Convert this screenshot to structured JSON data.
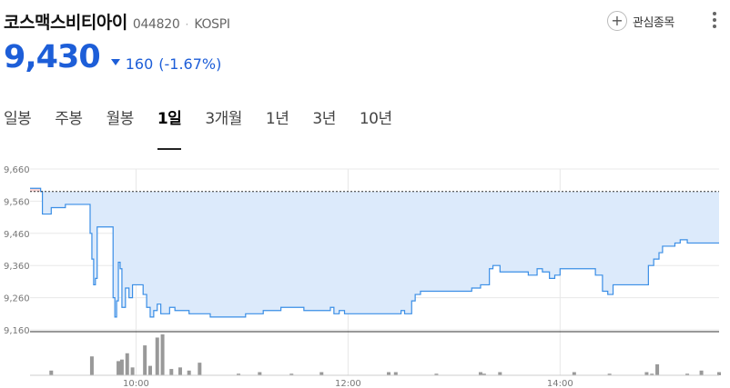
{
  "header": {
    "name": "코스맥스비티아이",
    "code": "044820",
    "separator": "·",
    "market": "KOSPI",
    "watch_icon": "plus-circle-icon",
    "watch_label": "관심종목",
    "more_icon": "kebab-menu-icon"
  },
  "quote": {
    "price": "9,430",
    "direction": "down",
    "change": "160",
    "change_pct": "(-1.67%)",
    "color": "#1d5ed8"
  },
  "tabs": [
    {
      "label": "일봉",
      "active": false
    },
    {
      "label": "주봉",
      "active": false
    },
    {
      "label": "월봉",
      "active": false
    },
    {
      "label": "1일",
      "active": true
    },
    {
      "label": "3개월",
      "active": false
    },
    {
      "label": "1년",
      "active": false
    },
    {
      "label": "3년",
      "active": false
    },
    {
      "label": "10년",
      "active": false
    }
  ],
  "chart_data": {
    "type": "area",
    "ylim": [
      9160,
      9660
    ],
    "y_ticks": [
      "9,660",
      "9,560",
      "9,460",
      "9,360",
      "9,260",
      "9,160"
    ],
    "y_tick_values": [
      9660,
      9560,
      9460,
      9360,
      9260,
      9160
    ],
    "x_ticks": [
      "10:00",
      "12:00",
      "14:00"
    ],
    "x_tick_minutes": [
      600,
      720,
      840
    ],
    "x_range_minutes": [
      540,
      930
    ],
    "prev_close": 9590,
    "colors": {
      "line": "#3a8ee6",
      "fill": "#dceafb",
      "above_fill": "#f8d4d4",
      "above_line": "#e05555",
      "volume": "#999999",
      "grid": "#e8e8e8"
    },
    "price_series": [
      [
        540,
        9600
      ],
      [
        545,
        9600
      ],
      [
        546,
        9590
      ],
      [
        547,
        9520
      ],
      [
        551,
        9520
      ],
      [
        552,
        9540
      ],
      [
        560,
        9550
      ],
      [
        573,
        9550
      ],
      [
        574,
        9460
      ],
      [
        575,
        9380
      ],
      [
        576,
        9300
      ],
      [
        577,
        9320
      ],
      [
        578,
        9480
      ],
      [
        586,
        9480
      ],
      [
        587,
        9260
      ],
      [
        588,
        9200
      ],
      [
        589,
        9250
      ],
      [
        590,
        9370
      ],
      [
        591,
        9350
      ],
      [
        592,
        9230
      ],
      [
        594,
        9290
      ],
      [
        596,
        9260
      ],
      [
        598,
        9300
      ],
      [
        602,
        9300
      ],
      [
        604,
        9270
      ],
      [
        606,
        9230
      ],
      [
        608,
        9200
      ],
      [
        610,
        9220
      ],
      [
        612,
        9240
      ],
      [
        614,
        9210
      ],
      [
        617,
        9210
      ],
      [
        619,
        9230
      ],
      [
        622,
        9220
      ],
      [
        629,
        9220
      ],
      [
        630,
        9210
      ],
      [
        640,
        9210
      ],
      [
        642,
        9200
      ],
      [
        660,
        9200
      ],
      [
        662,
        9210
      ],
      [
        672,
        9220
      ],
      [
        680,
        9220
      ],
      [
        682,
        9230
      ],
      [
        690,
        9230
      ],
      [
        695,
        9220
      ],
      [
        708,
        9220
      ],
      [
        710,
        9230
      ],
      [
        712,
        9210
      ],
      [
        715,
        9220
      ],
      [
        718,
        9210
      ],
      [
        735,
        9210
      ],
      [
        740,
        9210
      ],
      [
        745,
        9210
      ],
      [
        750,
        9220
      ],
      [
        752,
        9210
      ],
      [
        756,
        9250
      ],
      [
        758,
        9270
      ],
      [
        761,
        9280
      ],
      [
        780,
        9280
      ],
      [
        790,
        9290
      ],
      [
        795,
        9300
      ],
      [
        800,
        9350
      ],
      [
        802,
        9360
      ],
      [
        806,
        9340
      ],
      [
        820,
        9340
      ],
      [
        822,
        9330
      ],
      [
        825,
        9330
      ],
      [
        827,
        9350
      ],
      [
        830,
        9340
      ],
      [
        834,
        9320
      ],
      [
        837,
        9330
      ],
      [
        840,
        9350
      ],
      [
        858,
        9350
      ],
      [
        860,
        9330
      ],
      [
        862,
        9330
      ],
      [
        864,
        9280
      ],
      [
        867,
        9270
      ],
      [
        870,
        9300
      ],
      [
        885,
        9300
      ],
      [
        888,
        9300
      ],
      [
        890,
        9360
      ],
      [
        893,
        9380
      ],
      [
        896,
        9400
      ],
      [
        898,
        9420
      ],
      [
        902,
        9420
      ],
      [
        905,
        9430
      ],
      [
        908,
        9440
      ],
      [
        912,
        9430
      ],
      [
        915,
        9430
      ],
      [
        925,
        9430
      ],
      [
        930,
        9430
      ]
    ],
    "volume_series": [
      [
        552,
        3
      ],
      [
        575,
        12
      ],
      [
        590,
        9
      ],
      [
        592,
        10
      ],
      [
        595,
        14
      ],
      [
        598,
        5
      ],
      [
        605,
        19
      ],
      [
        608,
        6
      ],
      [
        612,
        24
      ],
      [
        615,
        26
      ],
      [
        620,
        4
      ],
      [
        625,
        5
      ],
      [
        630,
        3
      ],
      [
        636,
        8
      ],
      [
        658,
        1
      ],
      [
        670,
        2
      ],
      [
        688,
        1
      ],
      [
        705,
        2
      ],
      [
        743,
        2
      ],
      [
        747,
        2
      ],
      [
        770,
        1
      ],
      [
        795,
        2
      ],
      [
        797,
        1
      ],
      [
        806,
        2
      ],
      [
        848,
        2
      ],
      [
        868,
        1
      ],
      [
        889,
        2
      ],
      [
        892,
        1
      ],
      [
        895,
        7
      ],
      [
        912,
        1
      ],
      [
        920,
        3
      ],
      [
        930,
        2
      ]
    ]
  }
}
